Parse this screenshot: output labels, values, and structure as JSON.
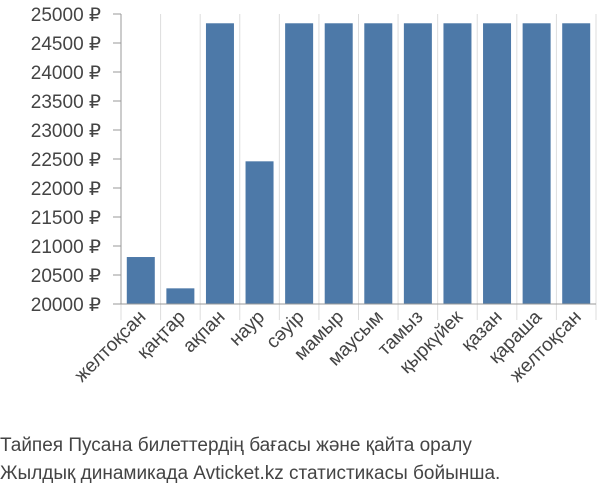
{
  "chart_data": {
    "type": "bar",
    "categories": [
      "желтоқсан",
      "қаңтар",
      "ақпан",
      "наур",
      "сәуір",
      "мамыр",
      "маусым",
      "тамыз",
      "қыркүйек",
      "қазан",
      "қараша",
      "желтоқсан"
    ],
    "values": [
      20810,
      20270,
      24840,
      22460,
      24840,
      24840,
      24840,
      24840,
      24840,
      24840,
      24840,
      24840
    ],
    "ylim": [
      20000,
      25000
    ],
    "yticks": [
      20000,
      20500,
      21000,
      21500,
      22000,
      22500,
      23000,
      23500,
      24000,
      24500,
      25000
    ],
    "ytick_labels": [
      "20000 ₽",
      "20500 ₽",
      "21000 ₽",
      "21500 ₽",
      "22000 ₽",
      "22500 ₽",
      "23000 ₽",
      "23500 ₽",
      "24000 ₽",
      "24500 ₽",
      "25000 ₽"
    ],
    "grid": "vertical",
    "bar_color": "#4d79a8",
    "grid_color": "#dddddd",
    "axis_color": "#999999"
  },
  "caption": {
    "line1": "Тайпея Пусана билеттердің бағасы және қайта оралу",
    "line2": "Жылдық динамикада Avticket.kz статистикасы бойынша."
  }
}
